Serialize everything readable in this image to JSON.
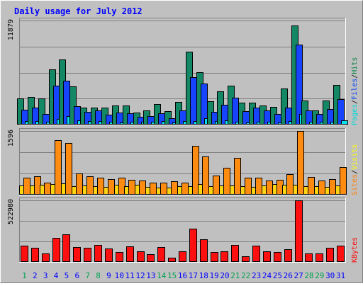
{
  "chart_data": {
    "type": "bar",
    "title": "Daily usage for July 2012",
    "categories": [
      "1",
      "2",
      "3",
      "4",
      "5",
      "6",
      "7",
      "8",
      "9",
      "10",
      "11",
      "12",
      "13",
      "14",
      "15",
      "16",
      "17",
      "18",
      "19",
      "20",
      "21",
      "22",
      "23",
      "24",
      "25",
      "26",
      "27",
      "28",
      "29",
      "30",
      "31"
    ],
    "weekend_days": [
      "1",
      "7",
      "8",
      "14",
      "15",
      "21",
      "22",
      "28",
      "29"
    ],
    "panels": [
      {
        "name": "hits-files-pages",
        "y_max_label": "11879",
        "ylim": [
          0,
          11879
        ],
        "legend": [
          {
            "label": "Pages",
            "color": "#00D8D8"
          },
          {
            "label": "Files",
            "color": "#0040FF"
          },
          {
            "label": "Hits",
            "color": "#008040"
          }
        ],
        "series": [
          {
            "name": "Hits",
            "color": "#148764",
            "values": [
              2950,
              3130,
              2990,
              6290,
              7410,
              4330,
              1950,
              1950,
              1950,
              2180,
              2180,
              1410,
              1650,
              2370,
              1500,
              2550,
              8330,
              5950,
              2700,
              3780,
              4450,
              2500,
              2540,
              2210,
              1990,
              4120,
              11300,
              2780,
              1620,
              2770,
              4520
            ]
          },
          {
            "name": "Files",
            "color": "#1644FF",
            "values": [
              1660,
              1940,
              1230,
              4480,
              5010,
              2070,
              1420,
              1590,
              1100,
              1360,
              1320,
              880,
              1000,
              1290,
              720,
              1650,
              5400,
              4670,
              1480,
              2250,
              3090,
              1510,
              1900,
              1580,
              1250,
              1920,
              9100,
              1590,
              1230,
              1740,
              2910
            ]
          },
          {
            "name": "Pages",
            "color": "#00E0F0",
            "values": [
              380,
              380,
              350,
              620,
              990,
              470,
              370,
              390,
              350,
              280,
              350,
              350,
              350,
              380,
              280,
              440,
              430,
              690,
              410,
              460,
              350,
              280,
              300,
              300,
              280,
              380,
              1250,
              350,
              350,
              350,
              450
            ]
          }
        ]
      },
      {
        "name": "visits-sites",
        "y_max_label": "1596",
        "ylim": [
          0,
          1596
        ],
        "legend": [
          {
            "label": "Sites",
            "color": "#FF8000"
          },
          {
            "label": "Visits",
            "color": "#FFFF00"
          }
        ],
        "series": [
          {
            "name": "Visits",
            "color": "#FFD410",
            "values": [
              230,
              230,
              240,
              260,
              280,
              210,
              230,
              220,
              200,
              240,
              210,
              240,
              200,
              180,
              180,
              210,
              210,
              270,
              220,
              230,
              230,
              220,
              200,
              230,
              260,
              250,
              240,
              210,
              220,
              200,
              230
            ]
          },
          {
            "name": "Sites",
            "color": "#FF8C10",
            "values": [
              420,
              460,
              300,
              1370,
              1290,
              540,
              460,
              420,
              390,
              430,
              380,
              350,
              310,
              310,
              330,
              300,
              1230,
              960,
              480,
              680,
              930,
              430,
              420,
              350,
              380,
              520,
              1596,
              450,
              360,
              390,
              700
            ]
          }
        ]
      },
      {
        "name": "kbytes",
        "y_max_label": "522980",
        "ylim": [
          0,
          522980
        ],
        "legend": [
          {
            "label": "KBytes",
            "color": "#FF0000"
          }
        ],
        "series": [
          {
            "name": "KBytes",
            "color": "#FF1010",
            "values": [
              140000,
              118000,
              74000,
              204000,
              235000,
              124000,
              121000,
              146000,
              117000,
              82000,
              132000,
              88000,
              65000,
              124000,
              34000,
              93000,
              284000,
              191000,
              87000,
              93000,
              143000,
              48000,
              141000,
              91000,
              84000,
              107000,
              522980,
              72000,
              70000,
              118000,
              140000
            ]
          }
        ]
      }
    ],
    "colors": {
      "background": "#C0C0C0",
      "plot_background": "#C0C0C0",
      "title": "#0000FF",
      "weekday_label": "#0000FF",
      "weekend_label": "#00A050"
    }
  }
}
